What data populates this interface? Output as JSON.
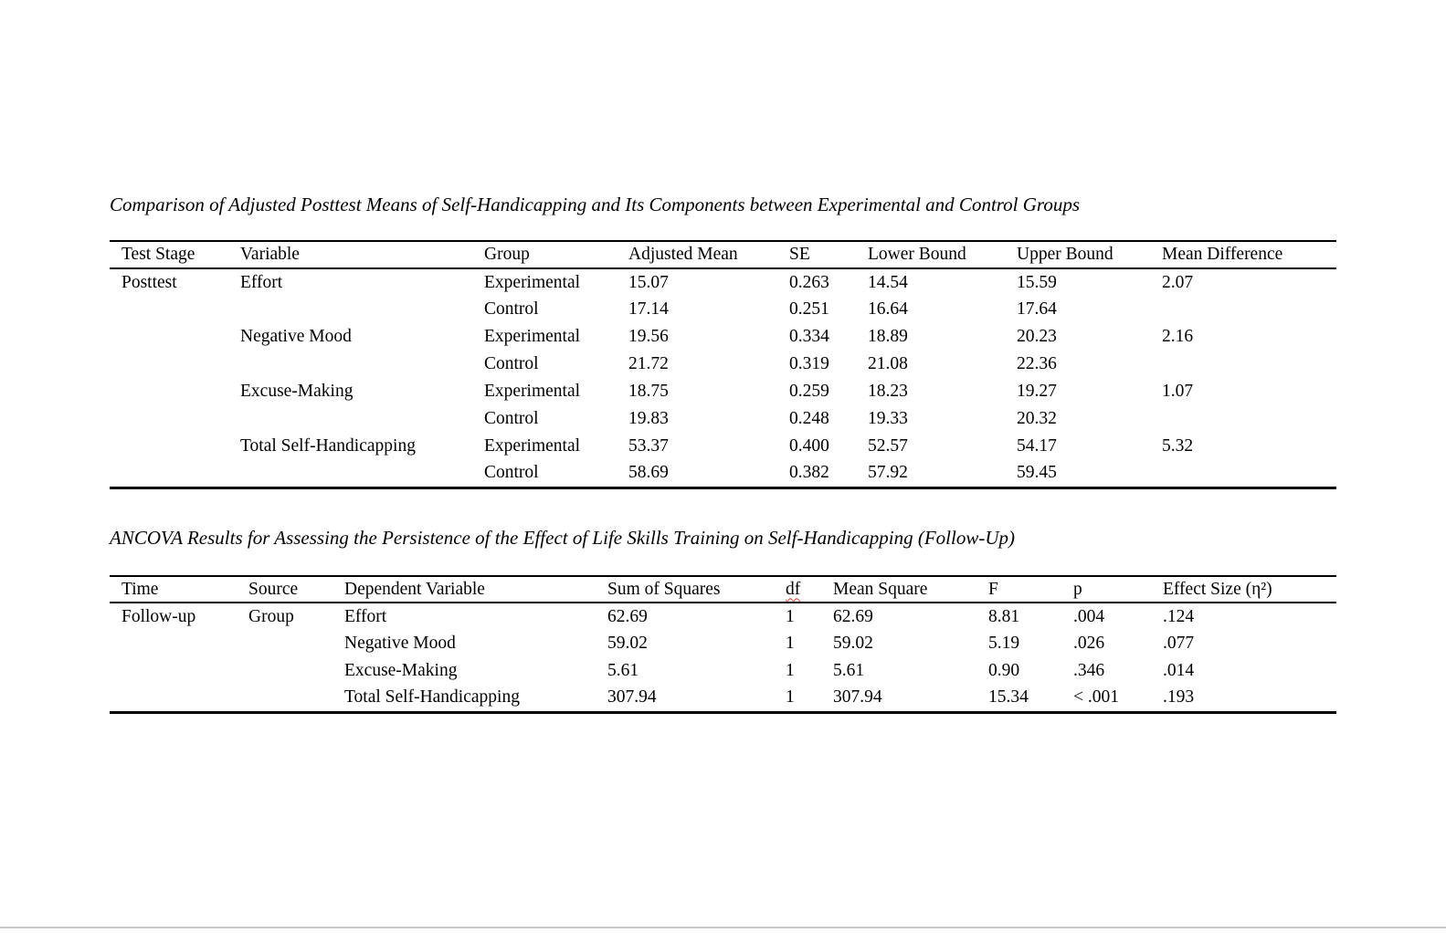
{
  "page": {
    "background": "#ffffff",
    "rule_color": "#000000",
    "spellcheck_underline_color": "#e03a2f",
    "bottom_border_color": "#c6c6c6"
  },
  "table1": {
    "title": "Comparison of Adjusted Posttest Means of Self-Handicapping and Its Components between Experimental and Control Groups",
    "columns": [
      "Test Stage",
      "Variable",
      "Group",
      "Adjusted Mean",
      "SE",
      "Lower Bound",
      "Upper Bound",
      "Mean Difference"
    ],
    "misspelled_column_index": -1,
    "rows": [
      [
        "Posttest",
        "Effort",
        "Experimental",
        "15.07",
        "0.263",
        "14.54",
        "15.59",
        "2.07"
      ],
      [
        "",
        "",
        "Control",
        "17.14",
        "0.251",
        "16.64",
        "17.64",
        ""
      ],
      [
        "",
        "Negative Mood",
        "Experimental",
        "19.56",
        "0.334",
        "18.89",
        "20.23",
        "2.16"
      ],
      [
        "",
        "",
        "Control",
        "21.72",
        "0.319",
        "21.08",
        "22.36",
        ""
      ],
      [
        "",
        "Excuse-Making",
        "Experimental",
        "18.75",
        "0.259",
        "18.23",
        "19.27",
        "1.07"
      ],
      [
        "",
        "",
        "Control",
        "19.83",
        "0.248",
        "19.33",
        "20.32",
        ""
      ],
      [
        "",
        "Total Self-Handicapping",
        "Experimental",
        "53.37",
        "0.400",
        "52.57",
        "54.17",
        "5.32"
      ],
      [
        "",
        "",
        "Control",
        "58.69",
        "0.382",
        "57.92",
        "59.45",
        ""
      ]
    ]
  },
  "table2": {
    "title": "ANCOVA Results for Assessing the Persistence of the Effect of Life Skills Training on Self-Handicapping (Follow-Up)",
    "columns": [
      "Time",
      "Source",
      "Dependent Variable",
      "Sum of Squares",
      "df",
      "Mean Square",
      "F",
      "p",
      "Effect Size (η²)"
    ],
    "misspelled_column_index": 4,
    "rows": [
      [
        "Follow-up",
        "Group",
        "Effort",
        "62.69",
        "1",
        "62.69",
        "8.81",
        ".004",
        ".124"
      ],
      [
        "",
        "",
        "Negative Mood",
        "59.02",
        "1",
        "59.02",
        "5.19",
        ".026",
        ".077"
      ],
      [
        "",
        "",
        "Excuse-Making",
        "5.61",
        "1",
        "5.61",
        "0.90",
        ".346",
        ".014"
      ],
      [
        "",
        "",
        "Total Self-Handicapping",
        "307.94",
        "1",
        "307.94",
        "15.34",
        "< .001",
        ".193"
      ]
    ]
  }
}
